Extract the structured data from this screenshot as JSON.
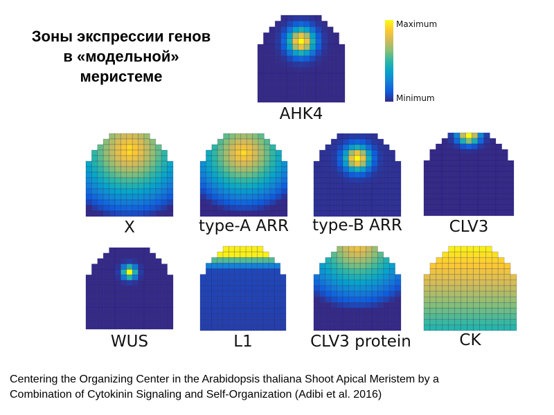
{
  "title": {
    "lines": [
      "Зоны экспрессии генов",
      "в «модельной»",
      "меристеме"
    ]
  },
  "colorbar": {
    "max_label": "Maximum",
    "min_label": "Minimum",
    "colors": [
      "#352a87",
      "#0f5cdd",
      "#1481d6",
      "#06a4ca",
      "#2eb7a4",
      "#87bf77",
      "#d1bb59",
      "#fec832",
      "#f9fb0e"
    ]
  },
  "panels": [
    {
      "id": "ahk4",
      "label": "AHK4"
    },
    {
      "id": "x",
      "label": "X"
    },
    {
      "id": "type-a-arr",
      "label": "type-A ARR"
    },
    {
      "id": "type-b-arr",
      "label": "type-B ARR"
    },
    {
      "id": "clv3",
      "label": "CLV3"
    },
    {
      "id": "wus",
      "label": "WUS"
    },
    {
      "id": "l1",
      "label": "L1"
    },
    {
      "id": "clv3-protein",
      "label": "CLV3 protein"
    },
    {
      "id": "ck",
      "label": "CK"
    }
  ],
  "caption": {
    "line1": "Centering the Organizing Center in the Arabidopsis thaliana Shoot Apical Meristem by a",
    "line2": "Combination of Cytokinin Signaling and Self-Organization (Adibi et al. 2016)"
  }
}
